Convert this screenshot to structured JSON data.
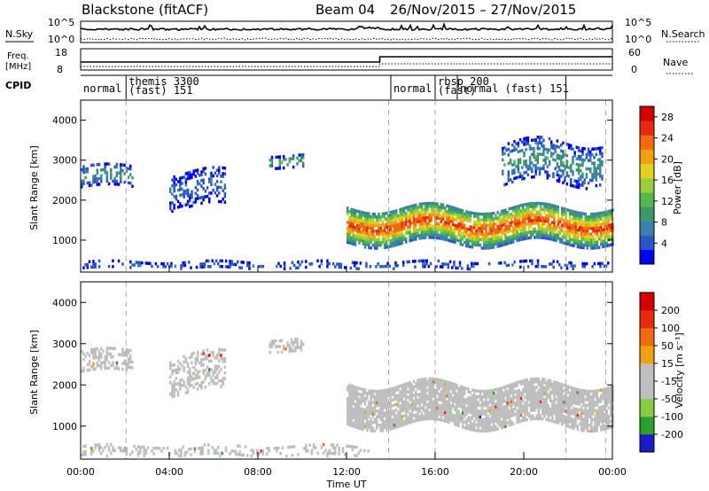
{
  "header": {
    "radar": "Blackstone (fitACF)",
    "beam": "Beam 04",
    "date_range": "26/Nov/2015 – 27/Nov/2015"
  },
  "noise_panel": {
    "left_label": "N.Sky",
    "right_label": "N.Search",
    "left_ticks": [
      "10^5",
      "10^0"
    ],
    "right_ticks": [
      "10^5",
      "10^0"
    ],
    "right_line": "dotted"
  },
  "freq_panel": {
    "left_label_1": "Freq.",
    "left_label_2": "[MHz]",
    "right_label": "Nave",
    "left_ticks": [
      "18",
      "8"
    ],
    "right_ticks": [
      "60",
      "0"
    ],
    "right_line": "dotted",
    "step_hour": 13.5
  },
  "cpid": {
    "label": "CPID",
    "segments": [
      {
        "name": "normal",
        "start": 0.0,
        "end": 2.05
      },
      {
        "name": "themis 3300",
        "sub": "(fast) 151",
        "start": 2.05,
        "end": 14.0
      },
      {
        "name": "normal",
        "start": 14.0,
        "end": 16.0
      },
      {
        "name": "rbsp 200",
        "sub": "(fast)",
        "start": 16.0,
        "end": 17.0
      },
      {
        "name": "normal (fast) 151",
        "start": 17.0,
        "end": 21.9
      },
      {
        "name": "",
        "start": 21.9,
        "end": 24.0
      }
    ]
  },
  "chart_data": [
    {
      "type": "heatmap",
      "name": "Power",
      "xlabel": "",
      "ylabel": "Slant Range [km]",
      "xlim": [
        0,
        24
      ],
      "ylim": [
        200,
        4500
      ],
      "yticks": [
        1000,
        2000,
        3000,
        4000
      ],
      "colorbar": {
        "label": "Power [dB]",
        "ticks": [
          "4",
          "8",
          "12",
          "16",
          "20",
          "24",
          "28"
        ],
        "range": [
          0,
          30
        ],
        "colors": [
          "#0000ee",
          "#2a55c8",
          "#3c7fb0",
          "#3b9a6b",
          "#55b84a",
          "#9bcc3c",
          "#e0d020",
          "#f0a012",
          "#f06a10",
          "#e62a0e",
          "#d40000"
        ]
      },
      "features": [
        {
          "desc": "band",
          "x": [
            0,
            2.3
          ],
          "r": [
            2300,
            2800
          ],
          "value": 10
        },
        {
          "desc": "scatter",
          "x": [
            4.0,
            6.5
          ],
          "r": [
            1800,
            2700
          ],
          "value": 6
        },
        {
          "desc": "cluster",
          "x": [
            8.5,
            10.0
          ],
          "r": [
            2800,
            3100
          ],
          "value": 12
        },
        {
          "desc": "main echo band",
          "x": [
            12.0,
            24.0
          ],
          "r": [
            900,
            1800
          ],
          "value": 26
        },
        {
          "desc": "upper arc",
          "x": [
            19.0,
            23.5
          ],
          "r": [
            2400,
            3400
          ],
          "value": 10
        },
        {
          "desc": "ground scatter strip",
          "x": [
            0,
            24.0
          ],
          "r": [
            200,
            450
          ],
          "value": 5
        }
      ]
    },
    {
      "type": "heatmap",
      "name": "Velocity",
      "xlabel": "Time UT",
      "ylabel": "Slant Range [km]",
      "xlim": [
        0,
        24
      ],
      "ylim": [
        200,
        4500
      ],
      "xticks": [
        "00:00",
        "04:00",
        "08:00",
        "12:00",
        "16:00",
        "20:00",
        "00:00"
      ],
      "yticks": [
        1000,
        2000,
        3000,
        4000
      ],
      "colorbar": {
        "label": "Velocity [m s⁻¹]",
        "ticks": [
          "200",
          "100",
          "50",
          "15",
          "-15",
          "-50",
          "-100",
          "-200"
        ],
        "range": [
          -250,
          250
        ],
        "colors": [
          "#1a1ac8",
          "#2aa02a",
          "#88cc44",
          "#bfbfbf",
          "#bfbfbf",
          "#f0a012",
          "#f06a10",
          "#e62a0e",
          "#d40000"
        ]
      },
      "features": [
        {
          "desc": "band",
          "x": [
            0,
            2.3
          ],
          "r": [
            2300,
            2800
          ],
          "value": 10
        },
        {
          "desc": "scatter",
          "x": [
            4.0,
            6.5
          ],
          "r": [
            1800,
            2700
          ],
          "value": 0
        },
        {
          "desc": "cluster",
          "x": [
            8.5,
            10.0
          ],
          "r": [
            2800,
            3100
          ],
          "value": 0
        },
        {
          "desc": "main echo band (low velocity)",
          "x": [
            12.0,
            24.0
          ],
          "r": [
            1000,
            2000
          ],
          "value": 0
        },
        {
          "desc": "ground scatter strip (negative)",
          "x": [
            0,
            13.0
          ],
          "r": [
            200,
            500
          ],
          "value": -30
        }
      ]
    }
  ]
}
